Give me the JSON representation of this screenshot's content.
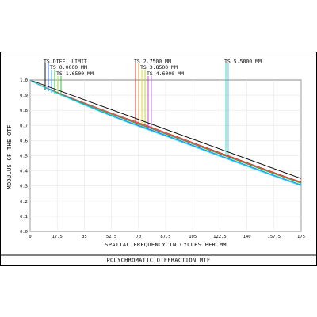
{
  "chart_data": {
    "type": "line",
    "title": "POLYCHROMATIC DIFFRACTION MTF",
    "xlabel": "SPATIAL FREQUENCY IN CYCLES PER MM",
    "ylabel": "MODULUS OF THE OTF",
    "xlim": [
      0,
      175
    ],
    "ylim": [
      0,
      1.0
    ],
    "x_ticks": [
      "0",
      "17.5",
      "35",
      "52.5",
      "70",
      "87.5",
      "105",
      "122.5",
      "140",
      "157.5",
      "175"
    ],
    "y_ticks": [
      "0.0",
      "0.1",
      "0.2",
      "0.3",
      "0.4",
      "0.5",
      "0.6",
      "0.7",
      "0.8",
      "0.9",
      "1.0"
    ],
    "legend_labels": [
      {
        "text": "TS DIFF. LIMIT",
        "colors": [
          "#000000"
        ]
      },
      {
        "text": "TS 0.0000 MM",
        "colors": [
          "#1e5cff",
          "#2aa0ff"
        ]
      },
      {
        "text": "TS 1.6500 MM",
        "colors": [
          "#22bb22",
          "#99dd33"
        ]
      },
      {
        "text": "TS 2.7500 MM",
        "colors": [
          "#d21c1c",
          "#e08a1a"
        ]
      },
      {
        "text": "TS 3.8500 MM",
        "colors": [
          "#e8d020",
          "#c0d020"
        ]
      },
      {
        "text": "TS 4.6000 MM",
        "colors": [
          "#d030d0",
          "#b060e0"
        ]
      },
      {
        "text": "TS 5.5000 MM",
        "colors": [
          "#20d8d8",
          "#40c8f0"
        ]
      }
    ],
    "series": [
      {
        "name": "TS DIFF. LIMIT",
        "color": "#000000",
        "x": [
          0,
          175
        ],
        "y": [
          1.0,
          0.349
        ]
      },
      {
        "color": "#d21c1c",
        "x": [
          0,
          70,
          175
        ],
        "y": [
          1.0,
          0.718,
          0.326
        ]
      },
      {
        "color": "#e08a1a",
        "x": [
          0,
          70,
          175
        ],
        "y": [
          1.0,
          0.715,
          0.322
        ]
      },
      {
        "color": "#d030d0",
        "x": [
          0,
          70,
          175
        ],
        "y": [
          1.0,
          0.712,
          0.32
        ]
      },
      {
        "color": "#22bb22",
        "x": [
          0,
          70,
          175
        ],
        "y": [
          1.0,
          0.708,
          0.318
        ]
      },
      {
        "color": "#1e5cff",
        "x": [
          0,
          70,
          175
        ],
        "y": [
          1.0,
          0.7,
          0.308
        ]
      },
      {
        "color": "#2aa0ff",
        "x": [
          0,
          70,
          175
        ],
        "y": [
          1.0,
          0.697,
          0.306
        ]
      },
      {
        "color": "#20d8d8",
        "x": [
          0,
          70,
          175
        ],
        "y": [
          1.0,
          0.694,
          0.302
        ]
      }
    ]
  }
}
